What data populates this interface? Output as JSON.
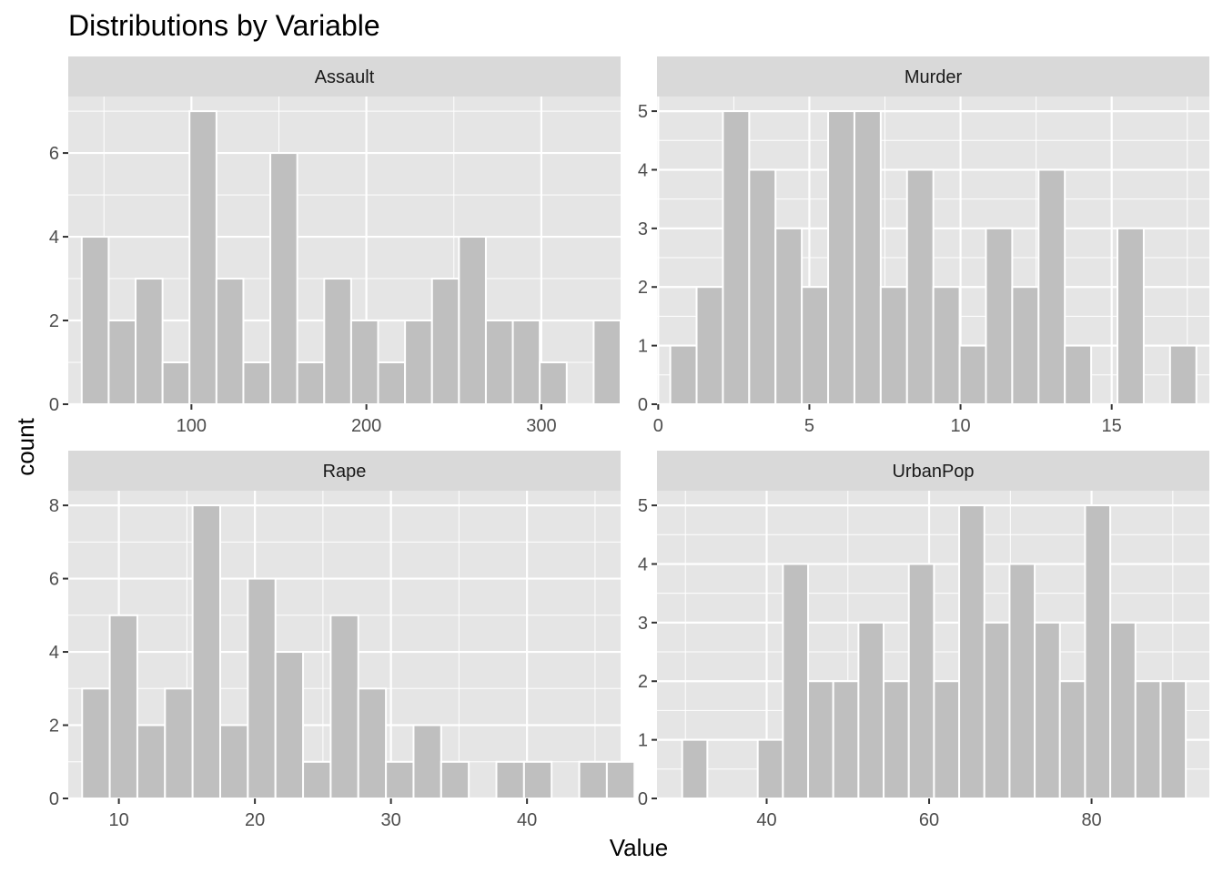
{
  "chart_data": {
    "type": "bar",
    "title": "Distributions by Variable",
    "xlabel": "Value",
    "ylabel": "count",
    "grid": true,
    "colors": {
      "bar_fill": "#bfbfbf",
      "bar_stroke": "#ffffff",
      "panel_bg": "#e5e5e5",
      "strip_bg": "#d9d9d9",
      "grid": "#ffffff",
      "text": "#000000",
      "tick_text": "#4d4d4d"
    },
    "panels": [
      {
        "name": "Assault",
        "bin_width": 15.4,
        "x_start": 37.3,
        "values": [
          4,
          2,
          3,
          1,
          7,
          3,
          1,
          6,
          1,
          3,
          2,
          1,
          2,
          3,
          4,
          2,
          2,
          1,
          0,
          2
        ],
        "xlim": [
          29.6,
          345.3
        ],
        "ylim": [
          0,
          7.35
        ],
        "xticks": [
          100,
          200,
          300
        ],
        "yticks": [
          0,
          2,
          4,
          6
        ]
      },
      {
        "name": "Murder",
        "bin_width": 0.87,
        "x_start": 0.4,
        "values": [
          1,
          2,
          5,
          4,
          3,
          2,
          5,
          5,
          2,
          4,
          2,
          1,
          3,
          2,
          4,
          1,
          0,
          3,
          0,
          1
        ],
        "xlim": [
          -0.04,
          18.23
        ],
        "ylim": [
          0,
          5.25
        ],
        "xticks": [
          0,
          5,
          10,
          15
        ],
        "yticks": [
          0,
          1,
          2,
          3,
          4,
          5
        ]
      },
      {
        "name": "Rape",
        "bin_width": 2.03,
        "x_start": 7.3,
        "values": [
          3,
          5,
          2,
          3,
          8,
          2,
          6,
          4,
          1,
          5,
          3,
          1,
          2,
          1,
          0,
          1,
          1,
          0,
          1,
          1
        ],
        "xlim": [
          6.28,
          46.88
        ],
        "ylim": [
          0,
          8.4
        ],
        "xticks": [
          10,
          20,
          30,
          40
        ],
        "yticks": [
          0,
          2,
          4,
          6,
          8
        ]
      },
      {
        "name": "UrbanPop",
        "bin_width": 3.1,
        "x_start": 29.6,
        "values": [
          1,
          0,
          0,
          1,
          4,
          2,
          2,
          3,
          2,
          4,
          2,
          5,
          3,
          4,
          3,
          2,
          5,
          3,
          2,
          2
        ],
        "xlim": [
          26.5,
          94.5
        ],
        "ylim": [
          0,
          5.25
        ],
        "xticks": [
          40,
          60,
          80
        ],
        "yticks": [
          0,
          1,
          2,
          3,
          4,
          5
        ]
      }
    ]
  }
}
